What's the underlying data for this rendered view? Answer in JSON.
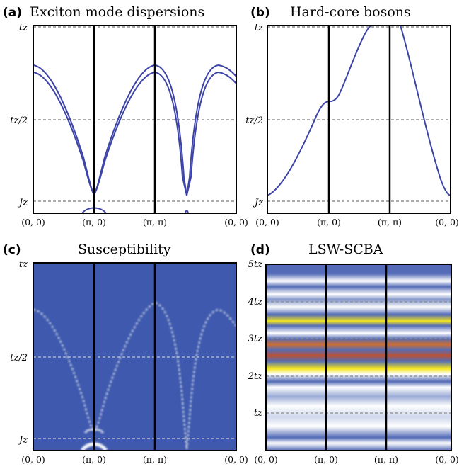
{
  "chart_data": [
    {
      "type": "line",
      "panel": "(a)",
      "title": "Exciton mode dispersions",
      "x_ticks": [
        "(0, 0)",
        "(π, 0)",
        "(π, π)",
        "(0, 0)"
      ],
      "y_ticks": [
        "Jz",
        "tz/2",
        "tz"
      ],
      "y_tick_values": [
        0.07,
        0.5,
        1.0
      ],
      "ylim": [
        -0.05,
        1.0
      ],
      "x_path_segments": [
        1,
        1,
        1.414
      ],
      "series": [
        {
          "x": [
            0,
            0.25,
            0.5,
            0.75,
            0.85,
            0.95,
            1,
            1.05,
            1.15,
            1.25,
            1.5,
            1.75,
            2,
            2.25,
            2.45,
            2.55,
            2.65,
            2.75,
            2.95,
            3.15,
            3.414
          ],
          "y": [
            0.78,
            0.76,
            0.62,
            0.35,
            0.2,
            0.1,
            0.08,
            0.1,
            0.2,
            0.35,
            0.62,
            0.76,
            0.78,
            0.68,
            0.45,
            0.3,
            0.09,
            0.3,
            0.6,
            0.76,
            0.78
          ]
        },
        {
          "x": [
            0,
            0.25,
            0.5,
            0.75,
            0.85,
            0.95,
            1,
            1.05,
            1.15,
            1.25,
            1.5,
            1.75,
            2,
            2.25,
            2.45,
            2.55,
            2.65,
            2.75,
            2.95,
            3.15,
            3.414
          ],
          "y": [
            0.74,
            0.72,
            0.58,
            0.33,
            0.19,
            0.1,
            0.08,
            0.1,
            0.19,
            0.33,
            0.58,
            0.72,
            0.74,
            0.64,
            0.42,
            0.28,
            0.09,
            0.28,
            0.56,
            0.72,
            0.74
          ]
        },
        {
          "x": [
            0.85,
            0.95,
            1,
            1.05,
            1.15
          ],
          "y": [
            -0.04,
            0.01,
            0.02,
            0.01,
            -0.04
          ]
        },
        {
          "x": [
            2.63,
            2.65,
            2.67
          ],
          "y": [
            -0.04,
            0.0,
            -0.04
          ]
        }
      ]
    },
    {
      "type": "line",
      "panel": "(b)",
      "title": "Hard-core bosons",
      "x_ticks": [
        "(0, 0)",
        "(π, 0)",
        "(π, π)",
        "(0, 0)"
      ],
      "y_ticks": [
        "Jz",
        "tz/2",
        "tz"
      ],
      "y_tick_values": [
        0.07,
        0.5,
        1.0
      ],
      "ylim": [
        0.0,
        1.0
      ],
      "x_path_segments": [
        1,
        1,
        1.414
      ],
      "series": [
        {
          "x": [
            0,
            0.15,
            0.35,
            0.6,
            0.85,
            1,
            1.2,
            1.45,
            1.7,
            1.9,
            2.0,
            2.2,
            2.5,
            2.8,
            3.1,
            3.414
          ],
          "y": [
            0.09,
            0.12,
            0.2,
            0.35,
            0.5,
            0.56,
            0.62,
            0.78,
            0.95,
            1.05,
            1.05,
            0.88,
            0.6,
            0.35,
            0.15,
            0.09
          ]
        }
      ]
    },
    {
      "type": "heatmap",
      "panel": "(c)",
      "title": "Susceptibility",
      "x_ticks": [
        "(0, 0)",
        "(π, 0)",
        "(π, π)",
        "(0, 0)"
      ],
      "y_ticks": [
        "Jz",
        "tz/2",
        "tz"
      ],
      "y_tick_values": [
        0.07,
        0.5,
        1.0
      ],
      "colors": {
        "background": "#3e59ad",
        "peak": "#ffffff"
      }
    },
    {
      "type": "heatmap",
      "panel": "(d)",
      "title": "LSW-SCBA",
      "x_ticks": [
        "(0, 0)",
        "(π, 0)",
        "(π, π)",
        "(0, 0)"
      ],
      "y_ticks": [
        "tz",
        "2tz",
        "3tz",
        "4tz",
        "5tz"
      ],
      "y_tick_values": [
        1,
        2,
        3,
        4,
        5
      ],
      "colors": {
        "low": "#3d58ad",
        "mid": "#ffffff",
        "high": "#f2e200",
        "peak": "#b23a18"
      }
    }
  ]
}
